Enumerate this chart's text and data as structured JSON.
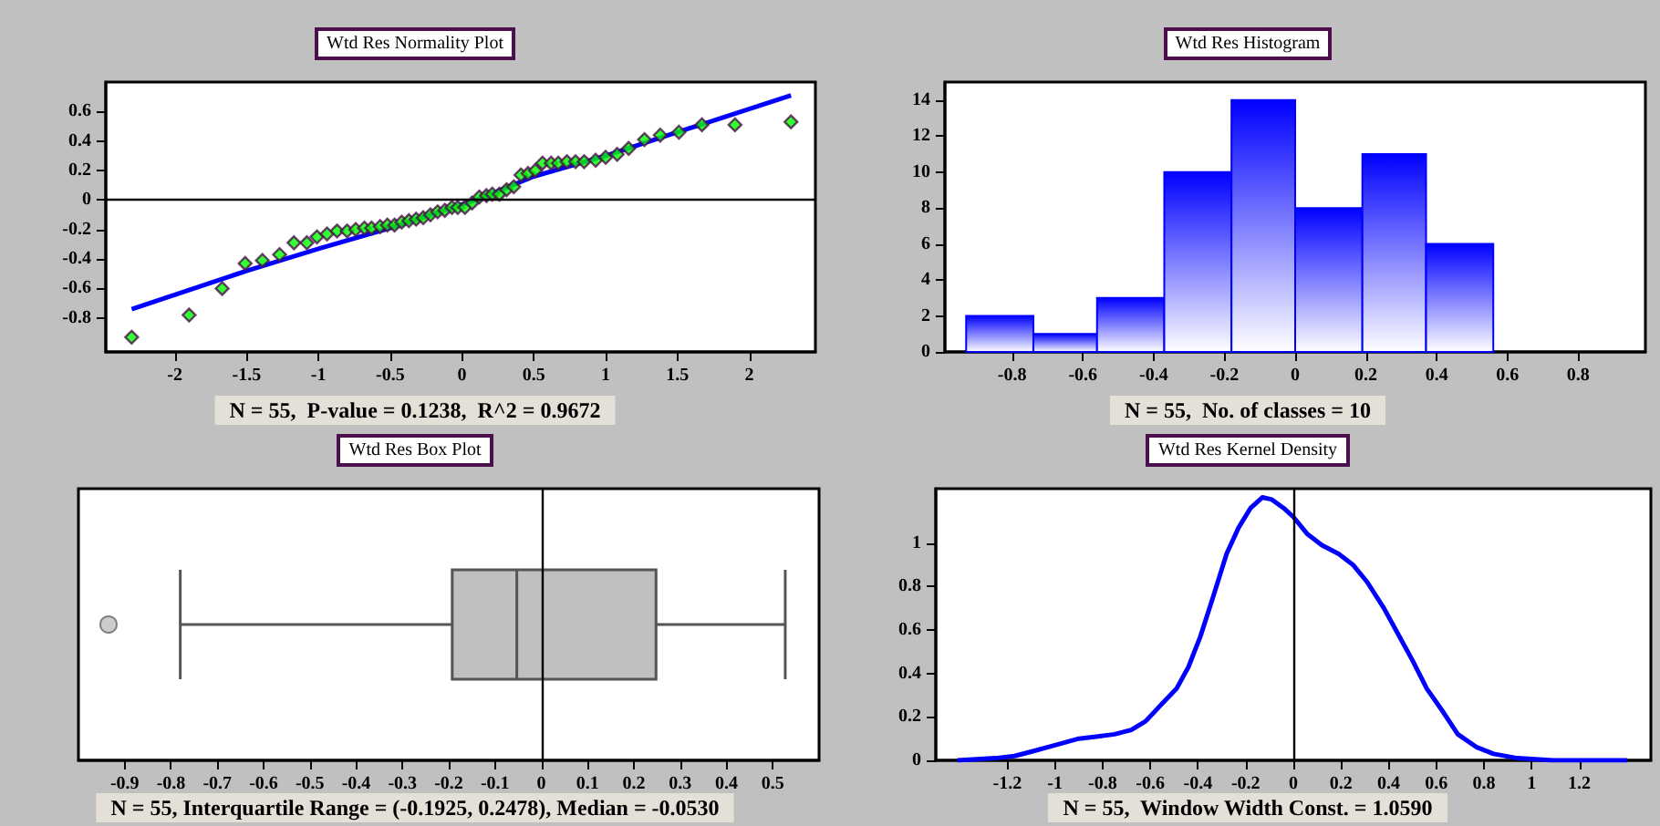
{
  "chart_data": [
    {
      "type": "scatter",
      "title": "Wtd Res Normality Plot",
      "annotations": [
        "N = 55,  P-value = 0.1238,  R^2 = 0.9672"
      ],
      "series": [
        {
          "type": "scatter",
          "marker": "diamond",
          "color": "#00ff00",
          "x": [
            -2.3,
            -1.9,
            -1.67,
            -1.51,
            -1.39,
            -1.27,
            -1.17,
            -1.08,
            -1.01,
            -0.94,
            -0.87,
            -0.8,
            -0.74,
            -0.68,
            -0.63,
            -0.57,
            -0.52,
            -0.47,
            -0.42,
            -0.37,
            -0.32,
            -0.27,
            -0.22,
            -0.17,
            -0.12,
            -0.07,
            -0.03,
            0.02,
            0.07,
            0.12,
            0.17,
            0.21,
            0.26,
            0.31,
            0.36,
            0.41,
            0.46,
            0.51,
            0.56,
            0.62,
            0.67,
            0.73,
            0.79,
            0.85,
            0.93,
            1.0,
            1.08,
            1.16,
            1.27,
            1.38,
            1.51,
            1.67,
            1.9,
            2.29
          ],
          "values": [
            -0.93,
            -0.78,
            -0.6,
            -0.43,
            -0.41,
            -0.37,
            -0.29,
            -0.29,
            -0.25,
            -0.23,
            -0.21,
            -0.21,
            -0.2,
            -0.19,
            -0.19,
            -0.18,
            -0.17,
            -0.17,
            -0.15,
            -0.14,
            -0.13,
            -0.12,
            -0.1,
            -0.08,
            -0.07,
            -0.05,
            -0.05,
            -0.05,
            -0.02,
            0.02,
            0.03,
            0.04,
            0.04,
            0.07,
            0.09,
            0.17,
            0.18,
            0.2,
            0.25,
            0.25,
            0.25,
            0.26,
            0.26,
            0.26,
            0.27,
            0.29,
            0.31,
            0.35,
            0.41,
            0.44,
            0.46,
            0.51,
            0.51,
            0.53
          ]
        },
        {
          "type": "line",
          "marker": "none",
          "color": "#0000ff",
          "x": [
            -2.3,
            -1.5,
            -1.0,
            -0.5,
            0,
            0.1,
            0.5,
            1.0,
            1.5,
            2.29
          ],
          "values": [
            -0.74,
            -0.48,
            -0.33,
            -0.19,
            -0.03,
            0.0,
            0.16,
            0.3,
            0.46,
            0.71
          ]
        }
      ],
      "xlim": [
        -2.48,
        2.46
      ],
      "xticks": [
        -2,
        -1.5,
        -1,
        -0.5,
        0,
        0.5,
        1,
        1.5,
        2
      ],
      "ylim": [
        -1.03,
        0.8
      ],
      "yticks": [
        -0.8,
        -0.6,
        -0.4,
        -0.2,
        0,
        0.2,
        0.4,
        0.6
      ],
      "ref_lines": [
        {
          "axis": "y",
          "value": 0,
          "color": "#000000"
        }
      ]
    },
    {
      "type": "histogram",
      "title": "Wtd Res Histogram",
      "annotations": [
        "N = 55,  No. of classes = 10"
      ],
      "bins": [
        -0.93,
        -0.74,
        -0.56,
        -0.37,
        -0.18,
        0,
        0.19,
        0.37,
        0.56
      ],
      "values": [
        2,
        1,
        3,
        10,
        14,
        8,
        11,
        6
      ],
      "color": "#0000ff",
      "xlim": [
        -0.99,
        0.99
      ],
      "xticks": [
        -0.8,
        -0.6,
        -0.4,
        -0.2,
        0,
        0.2,
        0.4,
        0.6,
        0.8
      ],
      "ylim": [
        0,
        15
      ],
      "yticks": [
        0,
        2,
        4,
        6,
        8,
        10,
        12,
        14
      ]
    },
    {
      "type": "box",
      "title": "Wtd Res Box Plot",
      "annotations": [
        "N = 55, Interquartile Range = (-0.1925, 0.2478), Median = -0.0530"
      ],
      "orientation": "horizontal",
      "categories": [
        null
      ],
      "color": "#c0c0c0",
      "boxes": [
        {
          "low": -0.78,
          "q1": -0.1925,
          "median": -0.053,
          "q3": 0.2478,
          "high": 0.527,
          "outliers": [
            -0.935
          ]
        }
      ],
      "xlim": [
        -1.0,
        0.6
      ],
      "xticks": [
        -0.9,
        -0.8,
        -0.7,
        -0.6,
        -0.5,
        -0.4,
        -0.3,
        -0.2,
        -0.1,
        0,
        0.1,
        0.2,
        0.3,
        0.4,
        0.5
      ],
      "ref_lines": [
        {
          "axis": "x",
          "value": 0,
          "color": "#000000"
        }
      ]
    },
    {
      "type": "line",
      "title": "Wtd Res Kernel Density",
      "annotations": [
        "N = 55,  Window Width Const. = 1.0590"
      ],
      "marker": "none",
      "color": "#0000ff",
      "x": [
        -1.41,
        -1.25,
        -1.17,
        -1.1,
        -1.0,
        -0.9,
        -0.82,
        -0.75,
        -0.68,
        -0.62,
        -0.56,
        -0.49,
        -0.44,
        -0.39,
        -0.34,
        -0.28,
        -0.23,
        -0.18,
        -0.13,
        -0.09,
        -0.04,
        0,
        0.06,
        0.12,
        0.19,
        0.25,
        0.31,
        0.38,
        0.44,
        0.5,
        0.56,
        0.63,
        0.69,
        0.77,
        0.84,
        0.94,
        1.09,
        1.4
      ],
      "values": [
        0,
        0.01,
        0.02,
        0.04,
        0.07,
        0.1,
        0.11,
        0.12,
        0.14,
        0.18,
        0.25,
        0.33,
        0.43,
        0.57,
        0.74,
        0.95,
        1.07,
        1.16,
        1.21,
        1.2,
        1.16,
        1.12,
        1.04,
        0.99,
        0.95,
        0.9,
        0.82,
        0.7,
        0.58,
        0.46,
        0.33,
        0.22,
        0.12,
        0.06,
        0.03,
        0.01,
        0,
        0
      ],
      "xlim": [
        -1.5,
        1.5
      ],
      "xticks": [
        -1.2,
        -1,
        -0.8,
        -0.6,
        -0.4,
        -0.2,
        0,
        0.2,
        0.4,
        0.6,
        0.8,
        1,
        1.2
      ],
      "ylim": [
        0,
        1.25
      ],
      "yticks": [
        0,
        0.2,
        0.4,
        0.6,
        0.8,
        1
      ],
      "ref_lines": [
        {
          "axis": "x",
          "value": 0,
          "color": "#000000"
        }
      ]
    }
  ]
}
